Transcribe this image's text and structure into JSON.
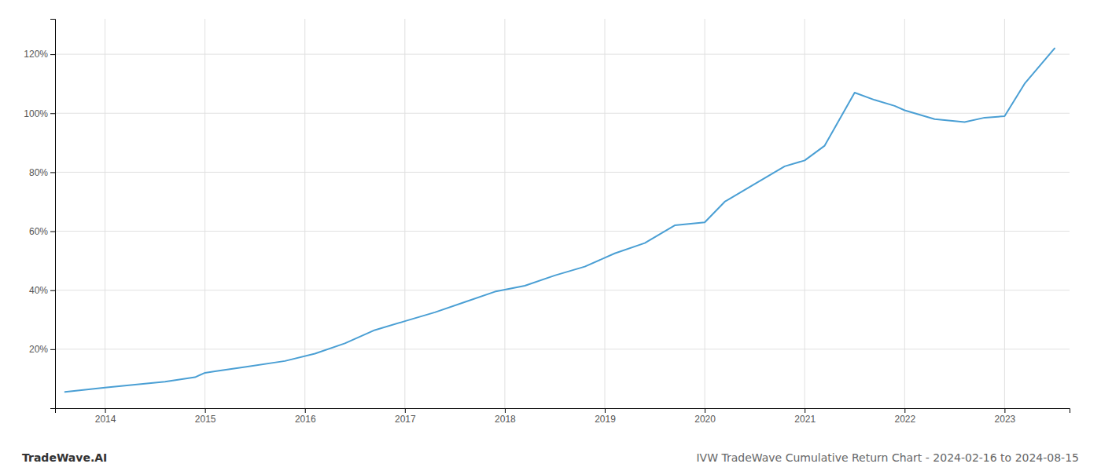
{
  "chart_data": {
    "type": "line",
    "title": "IVW TradeWave Cumulative Return Chart - 2024-02-16 to 2024-08-15",
    "annotations": [
      "TradeWave.AI"
    ],
    "x": [
      2013.6,
      2014.0,
      2014.3,
      2014.6,
      2014.9,
      2015.0,
      2015.1,
      2015.4,
      2015.8,
      2016.1,
      2016.4,
      2016.7,
      2017.0,
      2017.3,
      2017.6,
      2017.9,
      2018.2,
      2018.5,
      2018.8,
      2019.1,
      2019.4,
      2019.7,
      2020.0,
      2020.2,
      2020.5,
      2020.8,
      2021.0,
      2021.2,
      2021.5,
      2021.7,
      2021.9,
      2022.0,
      2022.3,
      2022.6,
      2022.8,
      2023.0,
      2023.2,
      2023.5
    ],
    "values": [
      5.5,
      7.0,
      8.0,
      9.0,
      10.5,
      12.0,
      12.5,
      14.0,
      16.0,
      18.5,
      22.0,
      26.5,
      29.5,
      32.5,
      36.0,
      39.5,
      41.5,
      45.0,
      48.0,
      52.5,
      56.0,
      62.0,
      63.0,
      70.0,
      76.0,
      82.0,
      84.0,
      89.0,
      107.0,
      104.5,
      102.5,
      101.0,
      98.0,
      97.0,
      98.5,
      99.0,
      110.0,
      122.0
    ],
    "color": "#4a9fd4",
    "xlim": [
      2013.5,
      2023.65
    ],
    "xticks": [
      2014,
      2015,
      2016,
      2017,
      2018,
      2019,
      2020,
      2021,
      2022,
      2023
    ],
    "ylim": [
      0,
      132
    ],
    "yticks": [
      {
        "value": 20,
        "label": "20%"
      },
      {
        "value": 40,
        "label": "40%"
      },
      {
        "value": 60,
        "label": "60%"
      },
      {
        "value": 80,
        "label": "80%"
      },
      {
        "value": 100,
        "label": "100%"
      },
      {
        "value": 120,
        "label": "120%"
      }
    ],
    "grid": true
  }
}
